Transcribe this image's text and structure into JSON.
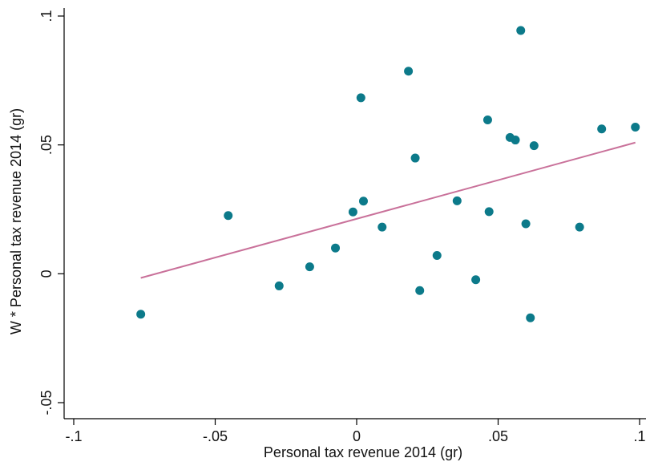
{
  "chart_data": {
    "type": "scatter",
    "xlabel": "Personal tax revenue 2014 (gr)",
    "ylabel": "W * Personal tax revenue 2014 (gr)",
    "xlim": [
      -0.1,
      0.1
    ],
    "ylim": [
      -0.05,
      0.1
    ],
    "xticks": [
      -0.1,
      -0.05,
      0,
      0.05,
      0.1
    ],
    "xtick_labels": [
      "-.1",
      "-.05",
      "0",
      ".05",
      ".1"
    ],
    "yticks": [
      -0.05,
      0,
      0.05,
      0.1
    ],
    "ytick_labels": [
      "-.05",
      "0",
      ".05",
      ".1"
    ],
    "grid": false,
    "colors": {
      "points": "#0c7a8a",
      "fit_line": "#c9719a",
      "axis": "#000000"
    },
    "points": [
      {
        "x": -0.0763,
        "y": -0.0157
      },
      {
        "x": -0.0454,
        "y": 0.0226
      },
      {
        "x": -0.0274,
        "y": -0.0047
      },
      {
        "x": -0.0166,
        "y": 0.0027
      },
      {
        "x": -0.0075,
        "y": 0.01
      },
      {
        "x": -0.0013,
        "y": 0.024
      },
      {
        "x": 0.0015,
        "y": 0.0683
      },
      {
        "x": 0.0024,
        "y": 0.0282
      },
      {
        "x": 0.009,
        "y": 0.0181
      },
      {
        "x": 0.0183,
        "y": 0.0786
      },
      {
        "x": 0.0207,
        "y": 0.0449
      },
      {
        "x": 0.0223,
        "y": -0.0065
      },
      {
        "x": 0.0284,
        "y": 0.0071
      },
      {
        "x": 0.0355,
        "y": 0.0283
      },
      {
        "x": 0.0421,
        "y": -0.0023
      },
      {
        "x": 0.0463,
        "y": 0.0597
      },
      {
        "x": 0.0468,
        "y": 0.0241
      },
      {
        "x": 0.0542,
        "y": 0.0529
      },
      {
        "x": 0.0561,
        "y": 0.0519
      },
      {
        "x": 0.058,
        "y": 0.0944
      },
      {
        "x": 0.0598,
        "y": 0.0194
      },
      {
        "x": 0.0614,
        "y": -0.0171
      },
      {
        "x": 0.0627,
        "y": 0.0497
      },
      {
        "x": 0.0788,
        "y": 0.0181
      },
      {
        "x": 0.0866,
        "y": 0.0562
      },
      {
        "x": 0.0985,
        "y": 0.0569
      }
    ],
    "fit_line": {
      "x": [
        -0.0763,
        0.0985
      ],
      "y": [
        -0.0016,
        0.0509
      ]
    }
  }
}
